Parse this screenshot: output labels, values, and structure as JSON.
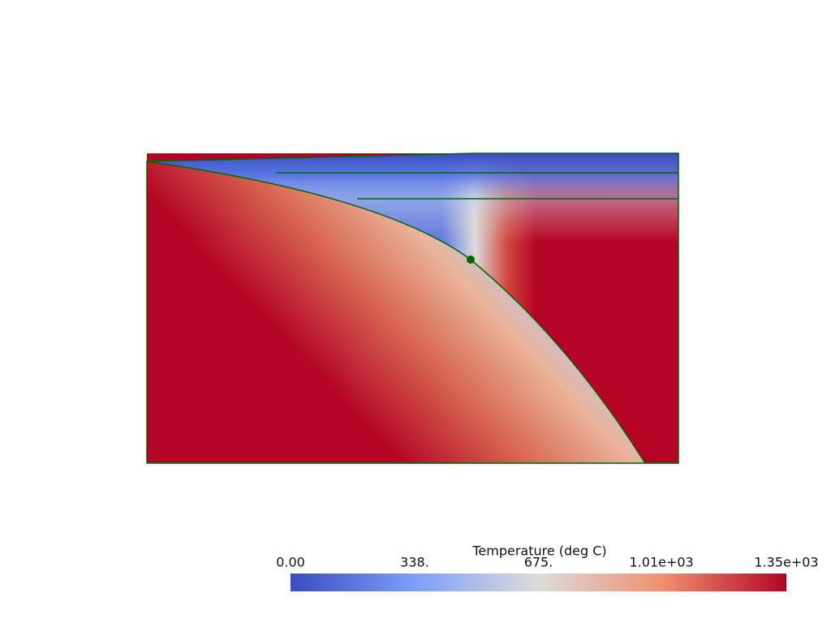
{
  "colorbar": {
    "title": "Temperature (deg C)",
    "ticks": [
      {
        "value": 0,
        "label": "0.00"
      },
      {
        "value": 338,
        "label": "338."
      },
      {
        "value": 675,
        "label": "675."
      },
      {
        "value": 1010,
        "label": "1.01e+03"
      },
      {
        "value": 1350,
        "label": "1.35e+03"
      }
    ]
  }
}
